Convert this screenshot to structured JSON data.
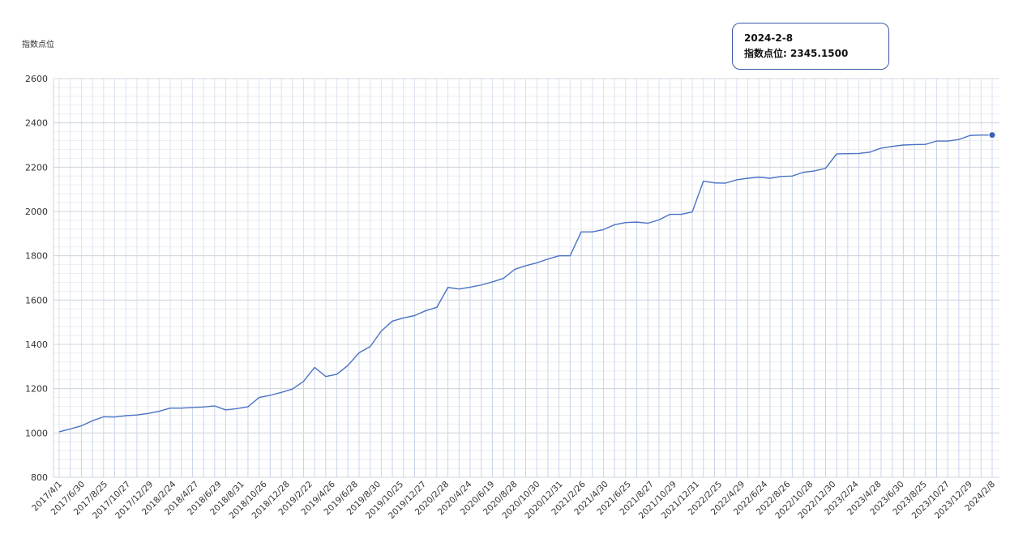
{
  "tooltip": {
    "date": "2024-2-8",
    "label": "指数点位",
    "value": "2345.1500"
  },
  "colors": {
    "line": "#4a72c4",
    "marker": "#3b62b8",
    "grid_major": "#d0d4dc",
    "grid_minor": "#eceef2",
    "vgrid": "#dbe2f0",
    "drop": "#c8d4ec",
    "axis_text": "#333333",
    "tooltip_border": "#3b5aa8"
  },
  "chart_data": {
    "type": "line",
    "title": "",
    "xlabel": "",
    "ylabel": "指数点位",
    "ylim": [
      800,
      2600
    ],
    "yticks": [
      800,
      1000,
      1200,
      1400,
      1600,
      1800,
      2000,
      2200,
      2400,
      2600
    ],
    "grid": true,
    "x_tick_labels": [
      "2017/4/1",
      "2017/6/30",
      "2017/8/25",
      "2017/10/27",
      "2017/12/29",
      "2018/2/24",
      "2018/4/27",
      "2018/6/29",
      "2018/8/31",
      "2018/10/26",
      "2018/12/28",
      "2019/2/22",
      "2019/4/26",
      "2019/6/28",
      "2019/8/30",
      "2019/10/25",
      "2019/12/27",
      "2020/2/28",
      "2020/4/24",
      "2020/6/19",
      "2020/8/28",
      "2020/10/30",
      "2020/12/31",
      "2021/2/26",
      "2021/4/30",
      "2021/6/25",
      "2021/8/27",
      "2021/10/29",
      "2021/12/31",
      "2022/2/25",
      "2022/4/29",
      "2022/6/24",
      "2022/8/26",
      "2022/10/28",
      "2022/12/30",
      "2023/2/24",
      "2023/4/28",
      "2023/6/30",
      "2023/8/25",
      "2023/10/27",
      "2023/12/29",
      "2024/2/8"
    ],
    "series": [
      {
        "values": [
          1005,
          1018,
          1032,
          1055,
          1073,
          1072,
          1078,
          1081,
          1088,
          1098,
          1112,
          1112,
          1115,
          1117,
          1122,
          1104,
          1110,
          1118,
          1160,
          1170,
          1183,
          1198,
          1233,
          1296,
          1255,
          1265,
          1305,
          1362,
          1390,
          1460,
          1505,
          1519,
          1530,
          1552,
          1567,
          1657,
          1650,
          1658,
          1668,
          1682,
          1698,
          1738,
          1755,
          1768,
          1785,
          1800,
          1800,
          1908,
          1908,
          1918,
          1940,
          1950,
          1952,
          1947,
          1962,
          1987,
          1987,
          1998,
          2137,
          2129,
          2128,
          2143,
          2150,
          2155,
          2150,
          2158,
          2160,
          2177,
          2183,
          2195,
          2260,
          2261,
          2262,
          2268,
          2286,
          2294,
          2300,
          2302,
          2303,
          2318,
          2318,
          2325,
          2343,
          2345,
          2345.15
        ]
      }
    ]
  }
}
